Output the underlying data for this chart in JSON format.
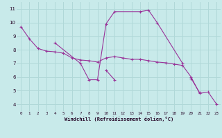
{
  "background_color": "#c8eaea",
  "grid_color": "#b0d8d8",
  "line_color": "#993399",
  "xlim": [
    -0.5,
    23.5
  ],
  "ylim": [
    3.5,
    11.5
  ],
  "xticks": [
    0,
    1,
    2,
    3,
    4,
    5,
    6,
    7,
    8,
    9,
    10,
    11,
    12,
    13,
    14,
    15,
    16,
    17,
    18,
    19,
    20,
    21,
    22,
    23
  ],
  "yticks": [
    4,
    5,
    6,
    7,
    8,
    9,
    10,
    11
  ],
  "xlabel": "Windchill (Refroidissement éolien,°C)",
  "series": [
    {
      "x": [
        0,
        1,
        2,
        3,
        4,
        5,
        6,
        7,
        8,
        9,
        10,
        11,
        12,
        13,
        14,
        15,
        16,
        17,
        18,
        19,
        20,
        21,
        22,
        23
      ],
      "y": [
        9.7,
        8.8,
        8.1,
        7.9,
        7.85,
        7.75,
        7.4,
        7.25,
        7.2,
        7.1,
        7.4,
        7.5,
        7.4,
        7.3,
        7.3,
        7.2,
        7.1,
        7.05,
        6.95,
        6.85,
        6.0,
        4.8,
        4.9,
        4.0
      ]
    },
    {
      "x": [
        4,
        7,
        8,
        9,
        10,
        11,
        14,
        15,
        16,
        19
      ],
      "y": [
        8.5,
        7.0,
        5.8,
        5.8,
        9.9,
        10.8,
        10.8,
        10.9,
        10.0,
        7.0
      ]
    },
    {
      "x": [
        10,
        11
      ],
      "y": [
        6.5,
        5.8
      ]
    },
    {
      "x": [
        20,
        21
      ],
      "y": [
        5.9,
        4.85
      ]
    }
  ],
  "xlabel_fontsize": 5.0,
  "tick_fontsize_x": 4.2,
  "tick_fontsize_y": 5.0
}
